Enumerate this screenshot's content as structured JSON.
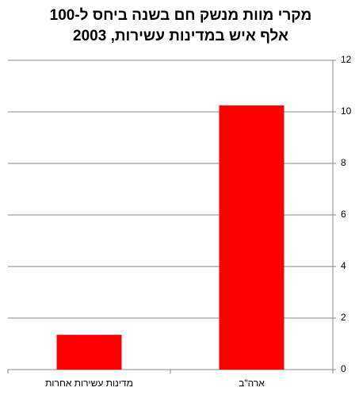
{
  "chart_data": {
    "type": "bar",
    "title": [
      "מקרי מוות מנשק חם בשנה ביחס ל-100",
      "אלף איש במדינות עשירות, 2003"
    ],
    "categories": [
      "מדינות עשירות אחרות",
      "ארה\"ב"
    ],
    "values": [
      1.35,
      10.25
    ],
    "color": "#ff0000",
    "ylim": [
      0,
      12
    ],
    "yticks": [
      0,
      2,
      4,
      6,
      8,
      10,
      12
    ],
    "grid": true,
    "y_axis_side": "right"
  }
}
